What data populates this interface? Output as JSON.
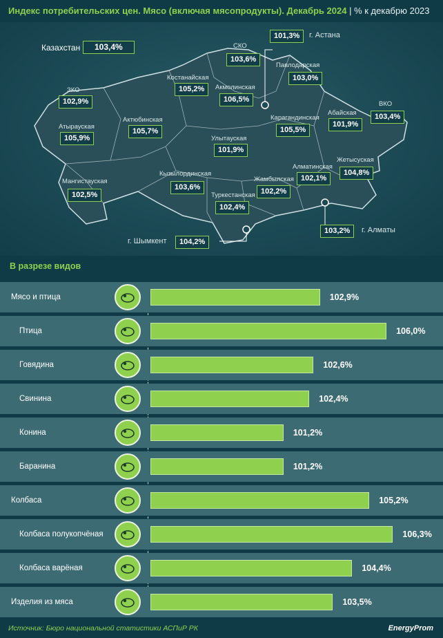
{
  "header": {
    "title_main": "Индекс потребительских цен. Мясо (включая мясопродукты). Декабрь 2024",
    "title_unit": "% к декабрю 2023"
  },
  "map": {
    "country_label": "Казахстан",
    "country_value": "103,4%",
    "regions": [
      {
        "name": "СКО",
        "value": "103,6%"
      },
      {
        "name": "Костанайская",
        "value": "105,2%"
      },
      {
        "name": "Акмолинская",
        "value": "106,5%"
      },
      {
        "name": "Павлодарская",
        "value": "103,0%"
      },
      {
        "name": "ЗКО",
        "value": "102,9%"
      },
      {
        "name": "Атырауская",
        "value": "105,9%"
      },
      {
        "name": "Актюбинская",
        "value": "105,7%"
      },
      {
        "name": "Карагандинская",
        "value": "105,5%"
      },
      {
        "name": "Абайская",
        "value": "101,9%"
      },
      {
        "name": "ВКО",
        "value": "103,4%"
      },
      {
        "name": "Улытауская",
        "value": "101,9%"
      },
      {
        "name": "Мангистауская",
        "value": "102,5%"
      },
      {
        "name": "Кызылординская",
        "value": "103,6%"
      },
      {
        "name": "Алматинская",
        "value": "102,1%"
      },
      {
        "name": "Жетысуская",
        "value": "104,8%"
      },
      {
        "name": "Жамбылская",
        "value": "102,2%"
      },
      {
        "name": "Туркестанская",
        "value": "102,4%"
      }
    ],
    "cities": [
      {
        "name": "г. Астана",
        "value": "101,3%"
      },
      {
        "name": "г. Шымкент",
        "value": "104,2%"
      },
      {
        "name": "г. Алматы",
        "value": "103,2%"
      }
    ]
  },
  "section_title": "В разрезе видов",
  "chart_data": {
    "type": "bar",
    "orientation": "horizontal",
    "unit": "%",
    "categories": [
      "Мясо и птица",
      "Птица",
      "Говядина",
      "Свинина",
      "Конина",
      "Баранина",
      "Колбаса",
      "Колбаса полукопчёная",
      "Колбаса варёная",
      "Изделия из мяса"
    ],
    "values": [
      102.9,
      106.0,
      102.6,
      102.4,
      101.2,
      101.2,
      105.2,
      106.3,
      104.4,
      103.5
    ],
    "value_labels": [
      "102,9%",
      "106,0%",
      "102,6%",
      "102,4%",
      "101,2%",
      "101,2%",
      "105,2%",
      "106,3%",
      "104,4%",
      "103,5%"
    ],
    "levels": [
      "main",
      "sub",
      "sub",
      "sub",
      "sub",
      "sub",
      "main",
      "sub",
      "sub",
      "main"
    ],
    "icons": [
      "steak-icon",
      "rooster-icon",
      "cow-icon",
      "pig-icon",
      "horse-icon",
      "sheep-icon",
      "sausage-icon",
      "smoked-sausage-icon",
      "boiled-sausage-icon",
      "meat-products-icon"
    ],
    "bar_color": "#8fd14f",
    "title": "В разрезе видов"
  },
  "footer": {
    "source": "Источник: Бюро национальной статистики АСПиР РК",
    "brand": "EnergyProm"
  }
}
